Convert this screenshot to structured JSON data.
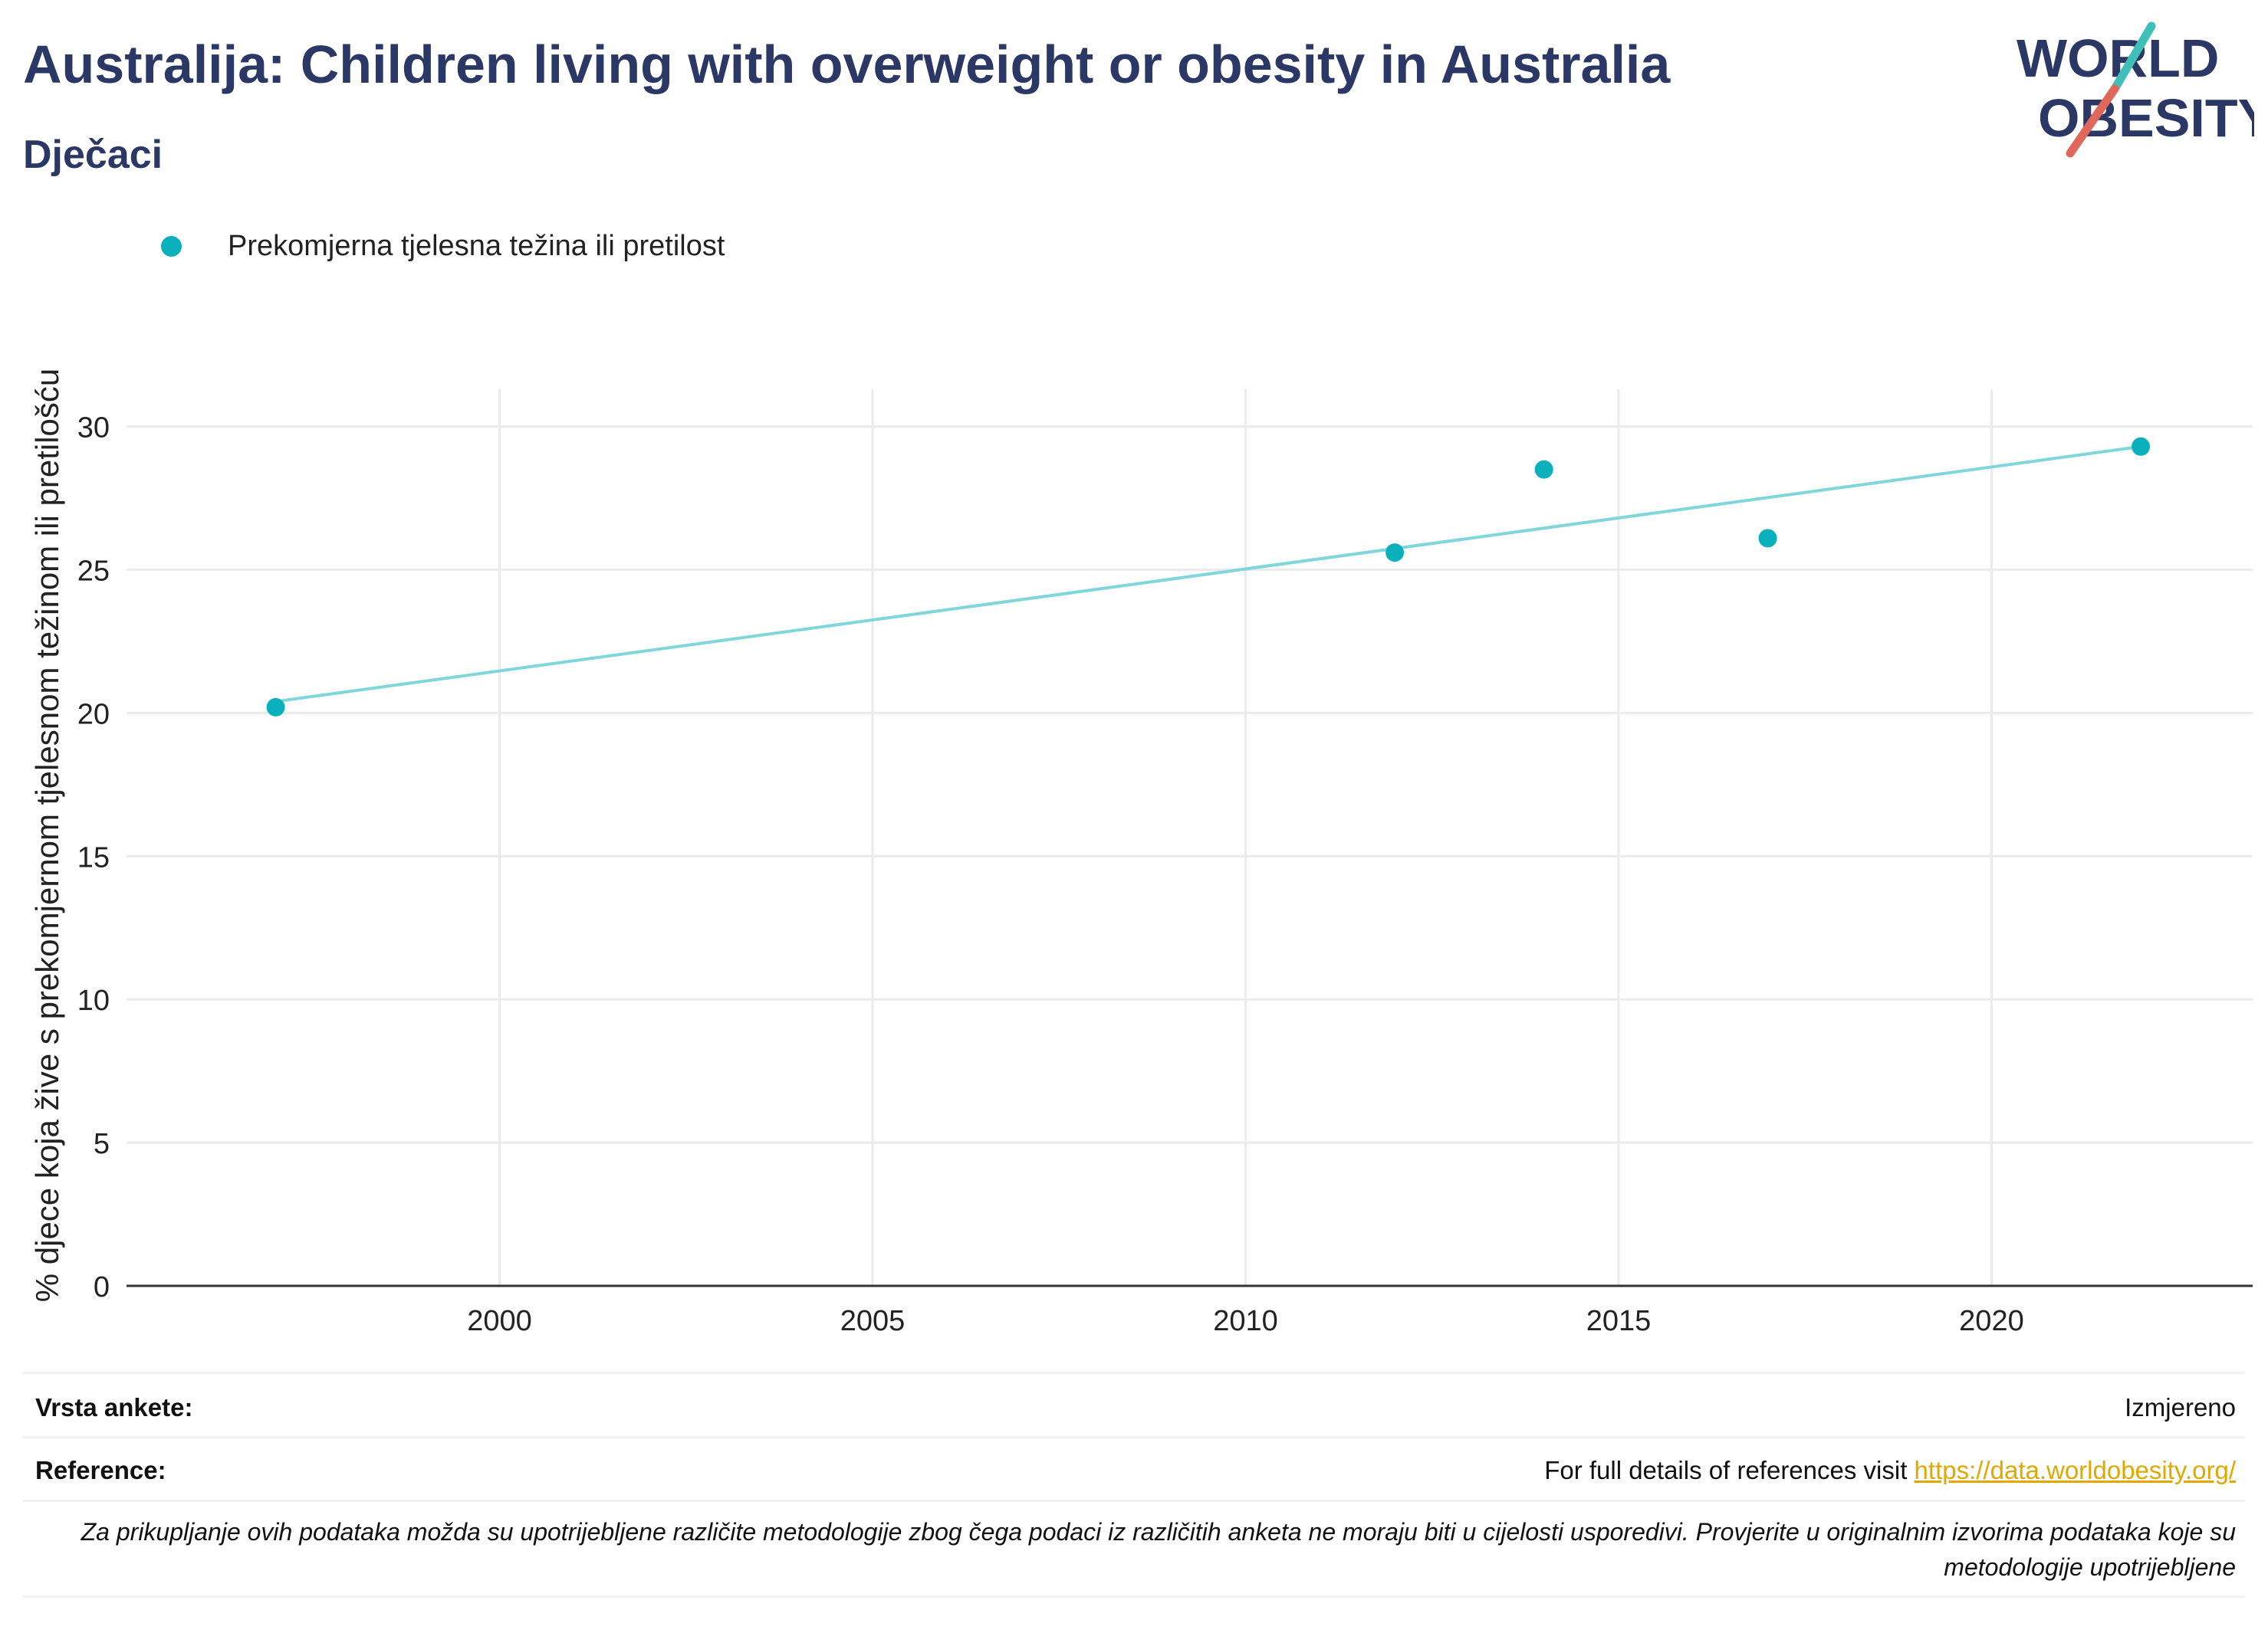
{
  "header": {
    "title": "Australija: Children living with overweight or obesity in Australia",
    "subtitle": "Dječaci"
  },
  "logo": {
    "line1": "WORLD",
    "line2": "OBESITY",
    "accent_colors": [
      "#3fbfb7",
      "#e0685a"
    ],
    "text_color": "#2b3765"
  },
  "chart_data": {
    "type": "scatter",
    "ylabel": "% djece koja žive s prekomjernom tjelesnom težinom ili pretilošću",
    "xlabel": "",
    "x_ticks": [
      2000,
      2005,
      2010,
      2015,
      2020
    ],
    "y_ticks": [
      0,
      5,
      10,
      15,
      20,
      25,
      30
    ],
    "xlim": [
      1995.0,
      2023.5
    ],
    "ylim": [
      0,
      31.3
    ],
    "grid": true,
    "legend_position": "top-left",
    "series": [
      {
        "name": "Prekomjerna tjelesna težina ili pretilost",
        "color": "#0ab1bd",
        "points": [
          {
            "x": 1997,
            "y": 20.2
          },
          {
            "x": 2012,
            "y": 25.6
          },
          {
            "x": 2014,
            "y": 28.5
          },
          {
            "x": 2017,
            "y": 26.1
          },
          {
            "x": 2022,
            "y": 29.3
          }
        ]
      }
    ],
    "trendline": {
      "color": "#7fd6db",
      "x": [
        1997,
        2022
      ],
      "y": [
        20.4,
        29.3
      ]
    }
  },
  "footer": {
    "survey_type_label": "Vrsta ankete:",
    "survey_type_value": "Izmjereno",
    "references_label": "Reference:",
    "references_text": "For full details of references visit",
    "references_link": "https://data.worldobesity.org/",
    "note": "Za prikupljanje ovih podataka možda su upotrijebljene različite metodologije zbog čega podaci iz različitih anketa ne moraju biti u cijelosti usporedivi. Provjerite u originalnim izvorima podataka koje su metodologije upotrijebljene"
  }
}
